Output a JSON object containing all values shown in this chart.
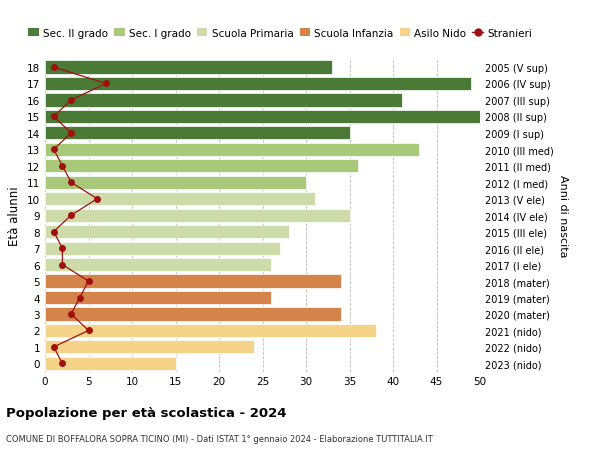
{
  "ages": [
    0,
    1,
    2,
    3,
    4,
    5,
    6,
    7,
    8,
    9,
    10,
    11,
    12,
    13,
    14,
    15,
    16,
    17,
    18
  ],
  "bar_values": [
    15,
    24,
    38,
    34,
    26,
    34,
    26,
    27,
    28,
    35,
    31,
    30,
    36,
    43,
    35,
    50,
    41,
    49,
    33
  ],
  "bar_colors": [
    "#f5d48a",
    "#f5d48a",
    "#f5d48a",
    "#d4844a",
    "#d4844a",
    "#d4844a",
    "#ccdba8",
    "#ccdba8",
    "#ccdba8",
    "#ccdba8",
    "#ccdba8",
    "#a8c87a",
    "#a8c87a",
    "#a8c87a",
    "#4a7a35",
    "#4a7a35",
    "#4a7a35",
    "#4a7a35",
    "#4a7a35"
  ],
  "stranieri": [
    2,
    1,
    5,
    3,
    4,
    5,
    2,
    2,
    1,
    3,
    6,
    3,
    2,
    1,
    3,
    1,
    3,
    7,
    1
  ],
  "right_labels": [
    "2023 (nido)",
    "2022 (nido)",
    "2021 (nido)",
    "2020 (mater)",
    "2019 (mater)",
    "2018 (mater)",
    "2017 (I ele)",
    "2016 (II ele)",
    "2015 (III ele)",
    "2014 (IV ele)",
    "2013 (V ele)",
    "2012 (I med)",
    "2011 (II med)",
    "2010 (III med)",
    "2009 (I sup)",
    "2008 (II sup)",
    "2007 (III sup)",
    "2006 (IV sup)",
    "2005 (V sup)"
  ],
  "legend_labels": [
    "Sec. II grado",
    "Sec. I grado",
    "Scuola Primaria",
    "Scuola Infanzia",
    "Asilo Nido",
    "Stranieri"
  ],
  "legend_colors": [
    "#4a7a35",
    "#a8c87a",
    "#ccdba8",
    "#d4844a",
    "#f5d48a",
    "#a01010"
  ],
  "title": "Popolazione per età scolastica - 2024",
  "subtitle": "COMUNE DI BOFFALORA SOPRA TICINO (MI) - Dati ISTAT 1° gennaio 2024 - Elaborazione TUTTITALIA.IT",
  "ylabel": "Età alunni",
  "right_ylabel": "Anni di nascita",
  "xlim": [
    0,
    50
  ],
  "xticks": [
    0,
    5,
    10,
    15,
    20,
    25,
    30,
    35,
    40,
    45,
    50
  ],
  "stranieri_color": "#a01010",
  "bar_edge_color": "white",
  "grid_color": "#bbbbbb",
  "bg_color": "#ffffff"
}
